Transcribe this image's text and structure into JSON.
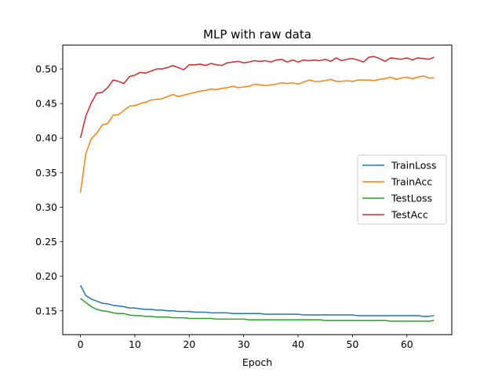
{
  "chart_data": {
    "type": "line",
    "title": "MLP with raw data",
    "xlabel": "Epoch",
    "ylabel": "",
    "xlim": [
      -3.25,
      68.25
    ],
    "ylim": [
      0.1155,
      0.5345
    ],
    "xticks": [
      0,
      10,
      20,
      30,
      40,
      50,
      60
    ],
    "yticks": [
      0.15,
      0.2,
      0.25,
      0.3,
      0.35,
      0.4,
      0.45,
      0.5
    ],
    "ytick_labels": [
      "0.15",
      "0.20",
      "0.25",
      "0.30",
      "0.35",
      "0.40",
      "0.45",
      "0.50"
    ],
    "grid": false,
    "legend_position": "center-right",
    "series": [
      {
        "name": "TrainLoss",
        "color": "#1f77b4",
        "x": [
          0,
          1,
          2,
          3,
          4,
          5,
          6,
          7,
          8,
          9,
          10,
          11,
          12,
          13,
          14,
          15,
          16,
          17,
          18,
          19,
          20,
          21,
          22,
          23,
          24,
          25,
          26,
          27,
          28,
          29,
          30,
          31,
          32,
          33,
          34,
          35,
          36,
          37,
          38,
          39,
          40,
          41,
          42,
          43,
          44,
          45,
          46,
          47,
          48,
          49,
          50,
          51,
          52,
          53,
          54,
          55,
          56,
          57,
          58,
          59,
          60,
          61,
          62,
          63,
          64,
          65
        ],
        "y": [
          0.187,
          0.172,
          0.167,
          0.164,
          0.161,
          0.16,
          0.158,
          0.157,
          0.156,
          0.154,
          0.154,
          0.153,
          0.152,
          0.152,
          0.151,
          0.151,
          0.15,
          0.15,
          0.149,
          0.149,
          0.149,
          0.148,
          0.148,
          0.148,
          0.147,
          0.147,
          0.147,
          0.147,
          0.146,
          0.146,
          0.146,
          0.146,
          0.146,
          0.146,
          0.145,
          0.145,
          0.145,
          0.145,
          0.145,
          0.145,
          0.145,
          0.144,
          0.144,
          0.144,
          0.144,
          0.144,
          0.144,
          0.144,
          0.144,
          0.144,
          0.144,
          0.143,
          0.143,
          0.143,
          0.143,
          0.143,
          0.143,
          0.143,
          0.143,
          0.143,
          0.143,
          0.143,
          0.143,
          0.142,
          0.142,
          0.143
        ]
      },
      {
        "name": "TrainAcc",
        "color": "#ff7f0e",
        "x": [
          0,
          1,
          2,
          3,
          4,
          5,
          6,
          7,
          8,
          9,
          10,
          11,
          12,
          13,
          14,
          15,
          16,
          17,
          18,
          19,
          20,
          21,
          22,
          23,
          24,
          25,
          26,
          27,
          28,
          29,
          30,
          31,
          32,
          33,
          34,
          35,
          36,
          37,
          38,
          39,
          40,
          41,
          42,
          43,
          44,
          45,
          46,
          47,
          48,
          49,
          50,
          51,
          52,
          53,
          54,
          55,
          56,
          57,
          58,
          59,
          60,
          61,
          62,
          63,
          64,
          65
        ],
        "y": [
          0.321,
          0.378,
          0.399,
          0.407,
          0.419,
          0.421,
          0.433,
          0.434,
          0.44,
          0.446,
          0.447,
          0.45,
          0.452,
          0.455,
          0.456,
          0.457,
          0.46,
          0.463,
          0.46,
          0.462,
          0.464,
          0.466,
          0.468,
          0.469,
          0.471,
          0.47,
          0.472,
          0.473,
          0.475,
          0.473,
          0.474,
          0.475,
          0.478,
          0.477,
          0.476,
          0.477,
          0.478,
          0.48,
          0.479,
          0.48,
          0.478,
          0.481,
          0.484,
          0.482,
          0.482,
          0.483,
          0.485,
          0.482,
          0.482,
          0.483,
          0.482,
          0.484,
          0.484,
          0.484,
          0.483,
          0.485,
          0.486,
          0.488,
          0.485,
          0.487,
          0.488,
          0.486,
          0.488,
          0.49,
          0.487,
          0.487
        ]
      },
      {
        "name": "TestLoss",
        "color": "#2ca02c",
        "x": [
          0,
          1,
          2,
          3,
          4,
          5,
          6,
          7,
          8,
          9,
          10,
          11,
          12,
          13,
          14,
          15,
          16,
          17,
          18,
          19,
          20,
          21,
          22,
          23,
          24,
          25,
          26,
          27,
          28,
          29,
          30,
          31,
          32,
          33,
          34,
          35,
          36,
          37,
          38,
          39,
          40,
          41,
          42,
          43,
          44,
          45,
          46,
          47,
          48,
          49,
          50,
          51,
          52,
          53,
          54,
          55,
          56,
          57,
          58,
          59,
          60,
          61,
          62,
          63,
          64,
          65
        ],
        "y": [
          0.168,
          0.162,
          0.156,
          0.152,
          0.15,
          0.149,
          0.147,
          0.146,
          0.146,
          0.144,
          0.143,
          0.143,
          0.142,
          0.142,
          0.141,
          0.141,
          0.141,
          0.14,
          0.14,
          0.14,
          0.139,
          0.139,
          0.139,
          0.139,
          0.139,
          0.138,
          0.138,
          0.138,
          0.138,
          0.138,
          0.138,
          0.137,
          0.137,
          0.137,
          0.137,
          0.137,
          0.137,
          0.137,
          0.137,
          0.137,
          0.137,
          0.137,
          0.137,
          0.137,
          0.137,
          0.136,
          0.136,
          0.136,
          0.136,
          0.136,
          0.136,
          0.136,
          0.136,
          0.136,
          0.136,
          0.136,
          0.136,
          0.135,
          0.135,
          0.135,
          0.135,
          0.135,
          0.135,
          0.135,
          0.135,
          0.136
        ]
      },
      {
        "name": "TestAcc",
        "color": "#d62728",
        "x": [
          0,
          1,
          2,
          3,
          4,
          5,
          6,
          7,
          8,
          9,
          10,
          11,
          12,
          13,
          14,
          15,
          16,
          17,
          18,
          19,
          20,
          21,
          22,
          23,
          24,
          25,
          26,
          27,
          28,
          29,
          30,
          31,
          32,
          33,
          34,
          35,
          36,
          37,
          38,
          39,
          40,
          41,
          42,
          43,
          44,
          45,
          46,
          47,
          48,
          49,
          50,
          51,
          52,
          53,
          54,
          55,
          56,
          57,
          58,
          59,
          60,
          61,
          62,
          63,
          64,
          65
        ],
        "y": [
          0.4,
          0.432,
          0.451,
          0.465,
          0.466,
          0.473,
          0.484,
          0.482,
          0.479,
          0.489,
          0.491,
          0.495,
          0.494,
          0.497,
          0.5,
          0.5,
          0.502,
          0.505,
          0.502,
          0.499,
          0.506,
          0.506,
          0.507,
          0.505,
          0.508,
          0.506,
          0.505,
          0.509,
          0.51,
          0.511,
          0.509,
          0.51,
          0.512,
          0.511,
          0.512,
          0.51,
          0.513,
          0.514,
          0.51,
          0.513,
          0.51,
          0.513,
          0.512,
          0.513,
          0.512,
          0.514,
          0.511,
          0.516,
          0.512,
          0.514,
          0.515,
          0.513,
          0.51,
          0.517,
          0.518,
          0.515,
          0.511,
          0.516,
          0.515,
          0.514,
          0.516,
          0.513,
          0.516,
          0.515,
          0.514,
          0.517
        ]
      }
    ]
  }
}
